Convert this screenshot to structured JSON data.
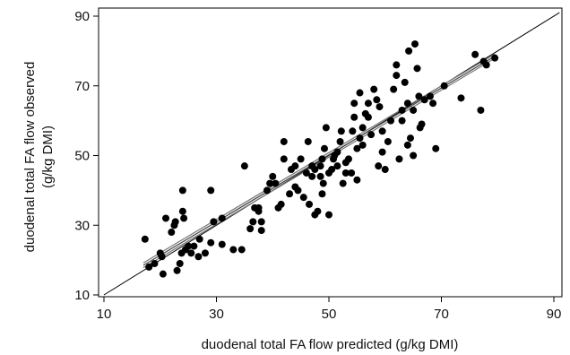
{
  "chart_data": {
    "type": "scatter",
    "xlabel": "duodenal total FA flow predicted (g/kg DMI)",
    "ylabel_line1": "duodenal total FA flow observed",
    "ylabel_line2": "(g/kg DMI)",
    "xlim": [
      10,
      90
    ],
    "ylim": [
      10,
      90
    ],
    "xticks": [
      "10",
      "30",
      "50",
      "70",
      "90"
    ],
    "yticks": [
      "10",
      "30",
      "50",
      "70",
      "90"
    ],
    "lines": [
      {
        "name": "identity (y = x)",
        "from": [
          10,
          10
        ],
        "to": [
          91,
          91
        ],
        "color": "#000000"
      },
      {
        "name": "regression",
        "from": [
          17,
          18.5
        ],
        "to": [
          79.5,
          78.5
        ],
        "color": "#444444"
      },
      {
        "name": "regression-ci-upper",
        "from": [
          17,
          19.2
        ],
        "to": [
          79.5,
          79.1
        ],
        "color": "#777777"
      },
      {
        "name": "regression-ci-lower",
        "from": [
          17,
          17.8
        ],
        "to": [
          79.5,
          77.9
        ],
        "color": "#777777"
      }
    ],
    "point_color": "#000000",
    "points": [
      [
        17.3,
        26
      ],
      [
        18,
        18
      ],
      [
        19,
        19
      ],
      [
        20,
        22
      ],
      [
        20.5,
        16
      ],
      [
        20.3,
        21
      ],
      [
        21,
        32
      ],
      [
        22,
        28
      ],
      [
        22.5,
        30
      ],
      [
        22.7,
        31
      ],
      [
        23,
        17
      ],
      [
        23.5,
        19
      ],
      [
        23.8,
        22
      ],
      [
        24,
        34
      ],
      [
        24.2,
        32
      ],
      [
        24,
        40
      ],
      [
        24.5,
        23
      ],
      [
        25,
        24
      ],
      [
        25.5,
        22
      ],
      [
        26,
        24
      ],
      [
        26.8,
        21
      ],
      [
        27,
        26
      ],
      [
        28,
        22
      ],
      [
        29,
        25
      ],
      [
        29,
        40
      ],
      [
        29.5,
        31
      ],
      [
        31,
        32
      ],
      [
        31,
        24.5
      ],
      [
        33,
        23
      ],
      [
        34.5,
        23
      ],
      [
        35,
        47
      ],
      [
        36,
        29
      ],
      [
        36.5,
        31
      ],
      [
        36.8,
        35
      ],
      [
        37.5,
        34
      ],
      [
        37.5,
        35
      ],
      [
        38,
        31
      ],
      [
        38,
        28.5
      ],
      [
        39,
        40
      ],
      [
        39.5,
        42
      ],
      [
        40,
        44
      ],
      [
        40.5,
        42
      ],
      [
        41,
        35
      ],
      [
        41.5,
        36
      ],
      [
        42,
        49
      ],
      [
        42,
        54
      ],
      [
        43,
        39
      ],
      [
        43.3,
        46
      ],
      [
        44,
        47
      ],
      [
        44,
        41
      ],
      [
        44.5,
        40
      ],
      [
        45,
        49
      ],
      [
        45.5,
        38
      ],
      [
        46,
        45
      ],
      [
        46.3,
        54
      ],
      [
        46.5,
        36
      ],
      [
        47,
        44
      ],
      [
        47,
        47
      ],
      [
        47.5,
        46
      ],
      [
        47.5,
        33
      ],
      [
        48,
        34
      ],
      [
        48.5,
        44
      ],
      [
        48.8,
        39
      ],
      [
        49,
        42
      ],
      [
        48.5,
        47
      ],
      [
        48.8,
        49
      ],
      [
        49.2,
        52
      ],
      [
        49.5,
        58
      ],
      [
        50,
        33
      ],
      [
        50,
        45
      ],
      [
        50.5,
        46
      ],
      [
        50.8,
        49
      ],
      [
        51,
        50
      ],
      [
        51.5,
        47
      ],
      [
        51.5,
        51
      ],
      [
        52,
        54
      ],
      [
        52.2,
        57
      ],
      [
        52.5,
        42
      ],
      [
        53,
        45
      ],
      [
        53,
        48
      ],
      [
        53.5,
        49
      ],
      [
        54,
        45
      ],
      [
        54.2,
        57
      ],
      [
        54.5,
        61
      ],
      [
        54.5,
        65
      ],
      [
        55,
        43
      ],
      [
        55,
        52
      ],
      [
        55.5,
        55
      ],
      [
        55.5,
        68
      ],
      [
        56,
        53
      ],
      [
        56,
        58
      ],
      [
        56.5,
        62
      ],
      [
        57,
        61
      ],
      [
        57,
        65
      ],
      [
        57.5,
        56
      ],
      [
        58,
        69
      ],
      [
        58.5,
        66
      ],
      [
        58.8,
        47
      ],
      [
        59,
        64
      ],
      [
        59.5,
        57
      ],
      [
        59.5,
        51
      ],
      [
        60,
        46
      ],
      [
        60.5,
        54
      ],
      [
        61,
        60
      ],
      [
        61.5,
        69
      ],
      [
        62,
        73
      ],
      [
        62,
        76
      ],
      [
        62.5,
        49
      ],
      [
        63,
        63
      ],
      [
        63,
        60
      ],
      [
        63.5,
        71
      ],
      [
        64,
        65
      ],
      [
        64,
        53
      ],
      [
        64.2,
        80
      ],
      [
        64.5,
        55
      ],
      [
        65,
        63
      ],
      [
        65,
        50
      ],
      [
        65.3,
        82
      ],
      [
        65.7,
        75
      ],
      [
        66,
        67
      ],
      [
        66.2,
        58
      ],
      [
        66.5,
        59
      ],
      [
        67,
        66
      ],
      [
        68,
        67
      ],
      [
        68.5,
        65
      ],
      [
        69,
        52
      ],
      [
        70.5,
        70
      ],
      [
        73.5,
        66.5
      ],
      [
        76,
        79
      ],
      [
        77,
        63
      ],
      [
        77.5,
        77
      ],
      [
        78,
        76
      ],
      [
        79.5,
        78
      ]
    ]
  }
}
